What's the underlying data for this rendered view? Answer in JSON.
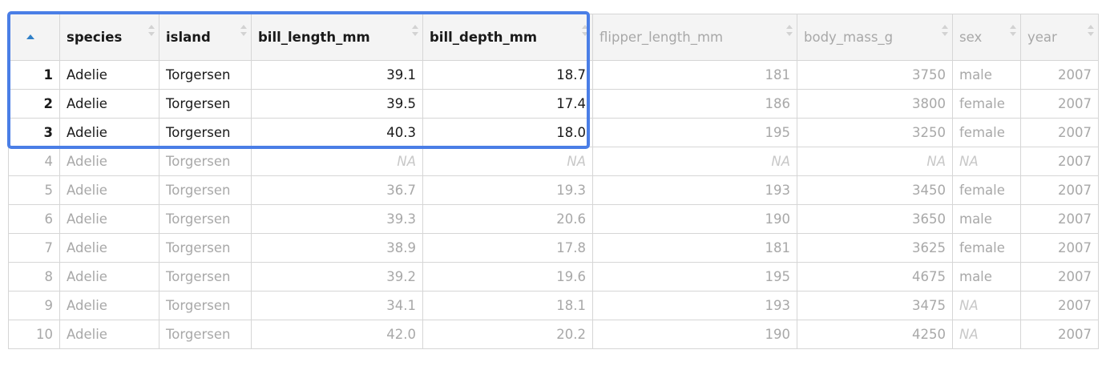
{
  "columns": [
    {
      "key": "rn",
      "label": ""
    },
    {
      "key": "species",
      "label": "species"
    },
    {
      "key": "island",
      "label": "island"
    },
    {
      "key": "bill_length_mm",
      "label": "bill_length_mm"
    },
    {
      "key": "bill_depth_mm",
      "label": "bill_depth_mm"
    },
    {
      "key": "flipper_length_mm",
      "label": "flipper_length_mm"
    },
    {
      "key": "body_mass_g",
      "label": "body_mass_g"
    },
    {
      "key": "sex",
      "label": "sex"
    },
    {
      "key": "year",
      "label": "year"
    }
  ],
  "rows": [
    {
      "rn": "1",
      "species": "Adelie",
      "island": "Torgersen",
      "bill_length_mm": "39.1",
      "bill_depth_mm": "18.7",
      "flipper_length_mm": "181",
      "body_mass_g": "3750",
      "sex": "male",
      "year": "2007"
    },
    {
      "rn": "2",
      "species": "Adelie",
      "island": "Torgersen",
      "bill_length_mm": "39.5",
      "bill_depth_mm": "17.4",
      "flipper_length_mm": "186",
      "body_mass_g": "3800",
      "sex": "female",
      "year": "2007"
    },
    {
      "rn": "3",
      "species": "Adelie",
      "island": "Torgersen",
      "bill_length_mm": "40.3",
      "bill_depth_mm": "18.0",
      "flipper_length_mm": "195",
      "body_mass_g": "3250",
      "sex": "female",
      "year": "2007"
    },
    {
      "rn": "4",
      "species": "Adelie",
      "island": "Torgersen",
      "bill_length_mm": "NA",
      "bill_depth_mm": "NA",
      "flipper_length_mm": "NA",
      "body_mass_g": "NA",
      "sex": "NA",
      "year": "2007"
    },
    {
      "rn": "5",
      "species": "Adelie",
      "island": "Torgersen",
      "bill_length_mm": "36.7",
      "bill_depth_mm": "19.3",
      "flipper_length_mm": "193",
      "body_mass_g": "3450",
      "sex": "female",
      "year": "2007"
    },
    {
      "rn": "6",
      "species": "Adelie",
      "island": "Torgersen",
      "bill_length_mm": "39.3",
      "bill_depth_mm": "20.6",
      "flipper_length_mm": "190",
      "body_mass_g": "3650",
      "sex": "male",
      "year": "2007"
    },
    {
      "rn": "7",
      "species": "Adelie",
      "island": "Torgersen",
      "bill_length_mm": "38.9",
      "bill_depth_mm": "17.8",
      "flipper_length_mm": "181",
      "body_mass_g": "3625",
      "sex": "female",
      "year": "2007"
    },
    {
      "rn": "8",
      "species": "Adelie",
      "island": "Torgersen",
      "bill_length_mm": "39.2",
      "bill_depth_mm": "19.6",
      "flipper_length_mm": "195",
      "body_mass_g": "4675",
      "sex": "male",
      "year": "2007"
    },
    {
      "rn": "9",
      "species": "Adelie",
      "island": "Torgersen",
      "bill_length_mm": "34.1",
      "bill_depth_mm": "18.1",
      "flipper_length_mm": "193",
      "body_mass_g": "3475",
      "sex": "NA",
      "year": "2007"
    },
    {
      "rn": "10",
      "species": "Adelie",
      "island": "Torgersen",
      "bill_length_mm": "42.0",
      "bill_depth_mm": "20.2",
      "flipper_length_mm": "190",
      "body_mass_g": "4250",
      "sex": "NA",
      "year": "2007"
    }
  ],
  "colors": {
    "highlight": "#4a7ee6",
    "sort_active": "#2f7fc7"
  },
  "icons": {
    "sort_active": "sort-ascending-icon",
    "sort_idle": "sort-icon"
  }
}
